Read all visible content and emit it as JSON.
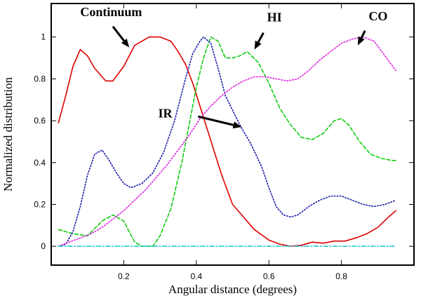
{
  "chart_data": {
    "type": "line",
    "title": "",
    "xlabel": "Angular distance (degrees)",
    "ylabel": "Normalized distribution",
    "xlim": [
      0.0,
      1.0
    ],
    "ylim": [
      -0.09,
      1.16
    ],
    "xticks": [
      {
        "value": 0.2,
        "label": "0.2"
      },
      {
        "value": 0.4,
        "label": "0.4"
      },
      {
        "value": 0.6,
        "label": "0.6"
      },
      {
        "value": 0.8,
        "label": "0.8"
      }
    ],
    "yticks": [
      {
        "value": 0,
        "label": "0"
      },
      {
        "value": 0.2,
        "label": "0.2"
      },
      {
        "value": 0.4,
        "label": "0.4"
      },
      {
        "value": 0.6,
        "label": "0.6"
      },
      {
        "value": 0.8,
        "label": "0.8"
      },
      {
        "value": 1.0,
        "label": "1"
      }
    ],
    "grid": false,
    "legend": "none",
    "series": [
      {
        "name": "Continuum",
        "color": "#dd0000",
        "dash": "solid",
        "x": [
          0.02,
          0.04,
          0.06,
          0.08,
          0.1,
          0.12,
          0.15,
          0.17,
          0.2,
          0.23,
          0.27,
          0.3,
          0.33,
          0.35,
          0.37,
          0.39,
          0.41,
          0.43,
          0.45,
          0.47,
          0.5,
          0.53,
          0.56,
          0.6,
          0.63,
          0.66,
          0.69,
          0.72,
          0.75,
          0.78,
          0.81,
          0.84,
          0.87,
          0.9,
          0.93,
          0.95
        ],
        "values": [
          0.59,
          0.72,
          0.86,
          0.94,
          0.91,
          0.85,
          0.79,
          0.79,
          0.86,
          0.96,
          1.0,
          1.0,
          0.98,
          0.93,
          0.87,
          0.78,
          0.67,
          0.56,
          0.45,
          0.34,
          0.2,
          0.14,
          0.08,
          0.03,
          0.01,
          0.0,
          0.005,
          0.02,
          0.015,
          0.025,
          0.025,
          0.04,
          0.06,
          0.09,
          0.14,
          0.17
        ]
      },
      {
        "name": "HI",
        "color": "#11cc11",
        "dash": "dashed",
        "x": [
          0.02,
          0.06,
          0.1,
          0.14,
          0.17,
          0.2,
          0.23,
          0.25,
          0.28,
          0.3,
          0.33,
          0.36,
          0.38,
          0.4,
          0.42,
          0.44,
          0.46,
          0.48,
          0.5,
          0.52,
          0.54,
          0.57,
          0.6,
          0.63,
          0.66,
          0.69,
          0.72,
          0.75,
          0.78,
          0.8,
          0.82,
          0.85,
          0.88,
          0.91,
          0.94,
          0.95
        ],
        "values": [
          0.08,
          0.06,
          0.05,
          0.12,
          0.15,
          0.12,
          0.02,
          0.0,
          0.0,
          0.05,
          0.18,
          0.4,
          0.58,
          0.76,
          0.9,
          1.0,
          0.98,
          0.9,
          0.9,
          0.91,
          0.93,
          0.88,
          0.78,
          0.66,
          0.58,
          0.52,
          0.51,
          0.54,
          0.6,
          0.61,
          0.58,
          0.5,
          0.44,
          0.42,
          0.41,
          0.41
        ]
      },
      {
        "name": "IR",
        "color": "#1a1aa8",
        "dash": "dotted",
        "x": [
          0.02,
          0.04,
          0.06,
          0.08,
          0.1,
          0.12,
          0.14,
          0.16,
          0.18,
          0.2,
          0.22,
          0.25,
          0.28,
          0.31,
          0.34,
          0.37,
          0.39,
          0.41,
          0.42,
          0.44,
          0.46,
          0.48,
          0.5,
          0.52,
          0.55,
          0.58,
          0.6,
          0.62,
          0.64,
          0.66,
          0.68,
          0.71,
          0.74,
          0.77,
          0.8,
          0.83,
          0.86,
          0.89,
          0.92,
          0.95
        ],
        "values": [
          0.0,
          0.01,
          0.07,
          0.19,
          0.34,
          0.44,
          0.46,
          0.41,
          0.35,
          0.3,
          0.28,
          0.3,
          0.35,
          0.45,
          0.6,
          0.8,
          0.92,
          0.98,
          1.0,
          0.97,
          0.85,
          0.72,
          0.65,
          0.58,
          0.49,
          0.38,
          0.28,
          0.19,
          0.15,
          0.14,
          0.15,
          0.19,
          0.22,
          0.24,
          0.24,
          0.22,
          0.2,
          0.19,
          0.2,
          0.22
        ]
      },
      {
        "name": "CO",
        "color": "#dd22dd",
        "dash": "dotted",
        "x": [
          0.02,
          0.05,
          0.08,
          0.11,
          0.14,
          0.17,
          0.2,
          0.23,
          0.26,
          0.29,
          0.32,
          0.35,
          0.38,
          0.41,
          0.44,
          0.47,
          0.5,
          0.53,
          0.56,
          0.59,
          0.62,
          0.65,
          0.68,
          0.71,
          0.74,
          0.77,
          0.8,
          0.83,
          0.86,
          0.89,
          0.92,
          0.95
        ],
        "values": [
          0.0,
          0.02,
          0.04,
          0.06,
          0.09,
          0.13,
          0.17,
          0.22,
          0.27,
          0.33,
          0.39,
          0.46,
          0.53,
          0.61,
          0.67,
          0.72,
          0.76,
          0.79,
          0.81,
          0.81,
          0.8,
          0.79,
          0.8,
          0.84,
          0.89,
          0.93,
          0.97,
          0.99,
          1.0,
          0.98,
          0.91,
          0.84
        ]
      },
      {
        "name": "",
        "color": "#22c8d8",
        "dash": "dashdot",
        "x": [
          0.02,
          0.95
        ],
        "values": [
          0.0,
          0.0
        ]
      }
    ],
    "annotations": [
      {
        "text": "Continuum",
        "label_x": 0.08,
        "label_y": 1.1,
        "arrow_from": [
          0.17,
          1.05
        ],
        "arrow_to": [
          0.215,
          0.95
        ]
      },
      {
        "text": "HI",
        "label_x": 0.595,
        "label_y": 1.075,
        "arrow_from": [
          0.585,
          1.02
        ],
        "arrow_to": [
          0.56,
          0.94
        ]
      },
      {
        "text": "CO",
        "label_x": 0.875,
        "label_y": 1.08,
        "arrow_from": [
          0.865,
          1.03
        ],
        "arrow_to": [
          0.845,
          0.96
        ]
      },
      {
        "text": "IR",
        "label_x": 0.295,
        "label_y": 0.615,
        "arrow_from": [
          0.405,
          0.62
        ],
        "arrow_to": [
          0.525,
          0.57
        ]
      }
    ]
  }
}
